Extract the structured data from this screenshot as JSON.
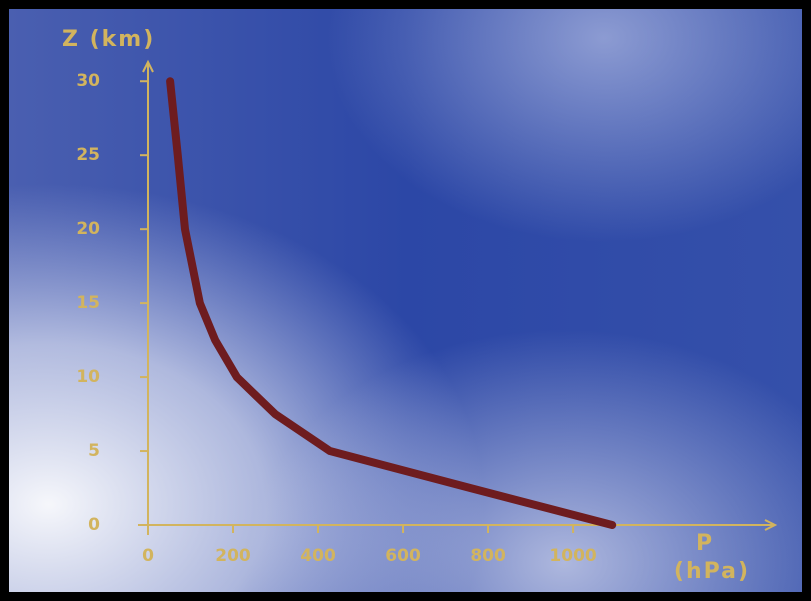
{
  "chart_data": {
    "type": "line",
    "y_label": "Z (km)",
    "x_label": "P",
    "x_unit": "(hPa)",
    "x": [
      52,
      70,
      87,
      122,
      158,
      209,
      299,
      428,
      758,
      1092
    ],
    "values": [
      30,
      25,
      20,
      15,
      12.5,
      10,
      7.5,
      5,
      2.5,
      0
    ],
    "color": "#6e1c1f",
    "axis_color": "#d2b45e",
    "xlim": [
      0,
      1475
    ],
    "ylim": [
      0,
      31.3
    ],
    "xticks": [
      0,
      200,
      400,
      600,
      800,
      1000
    ],
    "yticks": [
      0,
      5,
      10,
      15,
      20,
      25,
      30
    ]
  }
}
